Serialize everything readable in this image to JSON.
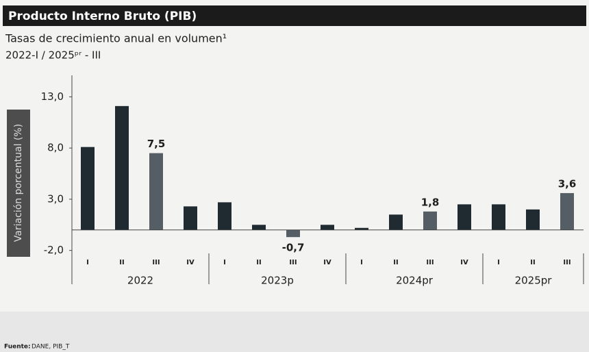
{
  "chart_data": {
    "type": "bar",
    "title": "Producto Interno Bruto (PIB)",
    "subtitle": "Tasas de crecimiento anual en volumen¹",
    "period": "2022-I / 2025ᵖʳ - III",
    "y_label": "Variación porcentual (%)",
    "groups": [
      {
        "name": "2022",
        "categories": [
          "I",
          "II",
          "III",
          "IV"
        ]
      },
      {
        "name": "2023p",
        "categories": [
          "I",
          "II",
          "III",
          "IV"
        ]
      },
      {
        "name": "2024pr",
        "categories": [
          "I",
          "II",
          "III",
          "IV"
        ]
      },
      {
        "name": "2025pr",
        "categories": [
          "I",
          "II",
          "III"
        ]
      }
    ],
    "values": [
      8.1,
      12.1,
      7.5,
      2.3,
      2.7,
      0.5,
      -0.7,
      0.5,
      0.2,
      1.5,
      1.8,
      2.5,
      2.5,
      2.0,
      3.6
    ],
    "value_labels": [
      null,
      null,
      "7,5",
      null,
      null,
      null,
      "-0,7",
      null,
      null,
      null,
      "1,8",
      null,
      null,
      null,
      "3,6"
    ],
    "colors": [
      "#1f2a31",
      "#1f2a31",
      "#555e65",
      "#1f2a31",
      "#1f2a31",
      "#1f2a31",
      "#555e65",
      "#1f2a31",
      "#1f2a31",
      "#1f2a31",
      "#555e65",
      "#1f2a31",
      "#1f2a31",
      "#1f2a31",
      "#555e65"
    ],
    "ylim": [
      -5.3,
      15.1
    ],
    "yticks": [
      {
        "value": -2,
        "label": "-2,0"
      },
      {
        "value": 3,
        "label": "3,0"
      },
      {
        "value": 8,
        "label": "8,0"
      },
      {
        "value": 13,
        "label": "13,0"
      }
    ],
    "grid": false,
    "source_label": "Fuente:",
    "source": "DANE, PIB_T"
  }
}
